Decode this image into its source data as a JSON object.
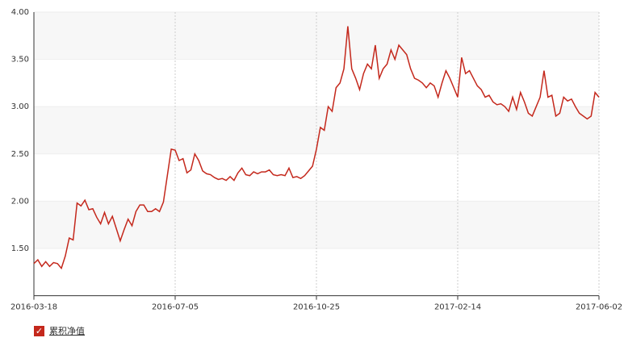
{
  "chart_data": {
    "type": "line",
    "categories": [
      "2016-03-18",
      null,
      null,
      null,
      null,
      null,
      null,
      null,
      null,
      null,
      null,
      null,
      null,
      null,
      null,
      null,
      null,
      null,
      null,
      null,
      null,
      null,
      null,
      null,
      null,
      null,
      null,
      null,
      null,
      null,
      null,
      null,
      null,
      null,
      null,
      null,
      "2016-07-05",
      null,
      null,
      null,
      null,
      null,
      null,
      null,
      null,
      null,
      null,
      null,
      null,
      null,
      null,
      null,
      null,
      null,
      null,
      null,
      null,
      null,
      null,
      null,
      null,
      null,
      null,
      null,
      null,
      null,
      null,
      null,
      null,
      null,
      null,
      null,
      "2016-10-25",
      null,
      null,
      null,
      null,
      null,
      null,
      null,
      null,
      null,
      null,
      null,
      null,
      null,
      null,
      null,
      null,
      null,
      null,
      null,
      null,
      null,
      null,
      null,
      null,
      null,
      null,
      null,
      null,
      null,
      null,
      null,
      null,
      null,
      null,
      null,
      "2017-02-14",
      null,
      null,
      null,
      null,
      null,
      null,
      null,
      null,
      null,
      null,
      null,
      null,
      null,
      null,
      null,
      null,
      null,
      null,
      null,
      null,
      null,
      null,
      null,
      null,
      null,
      null,
      null,
      null,
      null,
      null,
      null,
      null,
      null,
      null,
      null,
      "2017-06-02"
    ],
    "series": [
      {
        "name": "累积净值",
        "color": "#c4281c",
        "values": [
          1.34,
          1.38,
          1.31,
          1.36,
          1.31,
          1.35,
          1.34,
          1.29,
          1.42,
          1.61,
          1.59,
          1.98,
          1.95,
          2.01,
          1.91,
          1.92,
          1.83,
          1.76,
          1.88,
          1.76,
          1.84,
          1.71,
          1.58,
          1.7,
          1.81,
          1.74,
          1.89,
          1.96,
          1.96,
          1.89,
          1.89,
          1.92,
          1.89,
          1.99,
          2.27,
          2.55,
          2.54,
          2.43,
          2.45,
          2.3,
          2.33,
          2.5,
          2.43,
          2.32,
          2.29,
          2.28,
          2.25,
          2.23,
          2.24,
          2.22,
          2.26,
          2.22,
          2.3,
          2.35,
          2.28,
          2.27,
          2.31,
          2.29,
          2.31,
          2.31,
          2.33,
          2.28,
          2.27,
          2.28,
          2.27,
          2.35,
          2.25,
          2.26,
          2.24,
          2.27,
          2.32,
          2.37,
          2.55,
          2.78,
          2.75,
          3.0,
          2.95,
          3.2,
          3.25,
          3.4,
          3.85,
          3.4,
          3.3,
          3.18,
          3.35,
          3.45,
          3.4,
          3.65,
          3.3,
          3.4,
          3.45,
          3.6,
          3.5,
          3.65,
          3.6,
          3.55,
          3.4,
          3.3,
          3.28,
          3.25,
          3.2,
          3.25,
          3.22,
          3.1,
          3.25,
          3.38,
          3.3,
          3.2,
          3.1,
          3.52,
          3.35,
          3.38,
          3.3,
          3.22,
          3.18,
          3.1,
          3.12,
          3.05,
          3.02,
          3.03,
          3.0,
          2.95,
          3.1,
          2.97,
          3.15,
          3.05,
          2.93,
          2.9,
          3.0,
          3.1,
          3.38,
          3.1,
          3.12,
          2.9,
          2.93,
          3.1,
          3.06,
          3.08,
          3.0,
          2.93,
          2.9,
          2.87,
          2.9,
          3.15,
          3.1
        ]
      }
    ],
    "ylim": [
      1,
      4
    ],
    "yticks": [
      {
        "value": 1.5,
        "label": "1.50"
      },
      {
        "value": 2,
        "label": "2.00"
      },
      {
        "value": 2.5,
        "label": "2.50"
      },
      {
        "value": 3,
        "label": "3.00"
      },
      {
        "value": 3.5,
        "label": "3.50"
      },
      {
        "value": 4,
        "label": "4.00"
      }
    ],
    "grid": true
  }
}
